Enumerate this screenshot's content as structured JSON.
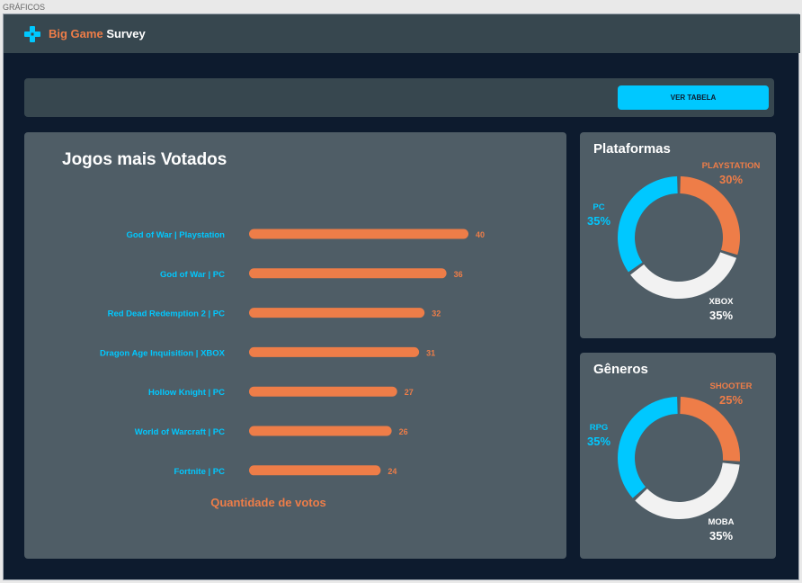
{
  "window": {
    "sheet_label": "GRÁFICOS"
  },
  "brand": {
    "part1": "Big Game",
    "part2": "Survey",
    "icon": "gamepad-icon"
  },
  "toolbar": {
    "button_label": "VER TABELA"
  },
  "colors": {
    "accent_cyan": "#00c8ff",
    "accent_orange": "#ee7d48",
    "white": "#f2f2f2",
    "panel": "#4f5d66",
    "background": "#0d1b2e"
  },
  "games_panel": {
    "title": "Jogos mais Votados",
    "chart_data": {
      "type": "bar",
      "orientation": "horizontal",
      "categories": [
        "God of War | Playstation",
        "God of War | PC",
        "Red Dead Redemption 2 | PC",
        "Dragon Age Inquisition | XBOX",
        "Hollow Knight | PC",
        "World of Warcraft | PC",
        "Fortnite | PC"
      ],
      "values": [
        40,
        36,
        32,
        31,
        27,
        26,
        24
      ],
      "value_labels": [
        "40",
        "36",
        "32",
        "31",
        "27",
        "26",
        "24"
      ],
      "xlabel": "Quantidade de votos",
      "bar_color": "#ee7d48",
      "grid": false
    }
  },
  "platforms_panel": {
    "title": "Plataformas",
    "chart_data": {
      "type": "pie",
      "donut": true,
      "categories": [
        "PLAYSTATION",
        "XBOX",
        "PC"
      ],
      "values": [
        30,
        35,
        35
      ],
      "labels": [
        "30%",
        "35%",
        "35%"
      ],
      "colors": [
        "#ee7d48",
        "#f2f2f2",
        "#00c8ff"
      ]
    }
  },
  "genres_panel": {
    "title": "Gêneros",
    "chart_data": {
      "type": "pie",
      "donut": true,
      "categories": [
        "SHOOTER",
        "MOBA",
        "RPG"
      ],
      "values": [
        25,
        35,
        35
      ],
      "labels": [
        "25%",
        "35%",
        "35%"
      ],
      "colors": [
        "#ee7d48",
        "#f2f2f2",
        "#00c8ff"
      ]
    }
  }
}
